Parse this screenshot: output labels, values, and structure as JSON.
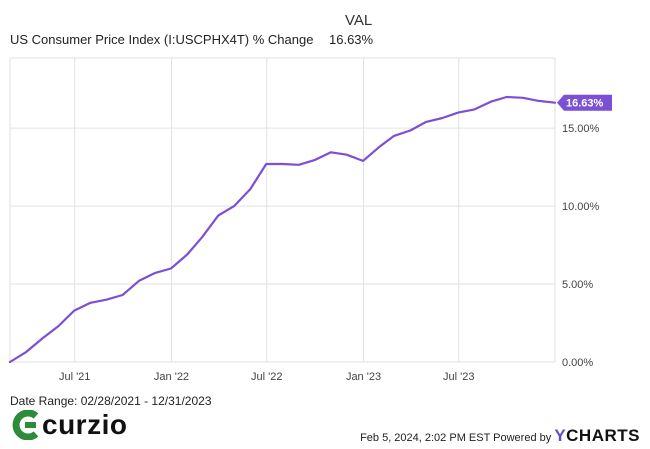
{
  "header": {
    "column_label": "VAL",
    "series_name": "US Consumer Price Index (I:USCPHX4T) % Change",
    "series_value": "16.63%"
  },
  "chart_data": {
    "type": "line",
    "series": [
      {
        "name": "US Consumer Price Index (I:USCPHX4T) % Change",
        "color": "#7b4fd6",
        "x": [
          "2021-02-28",
          "2021-03-31",
          "2021-04-30",
          "2021-05-31",
          "2021-06-30",
          "2021-07-31",
          "2021-08-31",
          "2021-09-30",
          "2021-10-31",
          "2021-11-30",
          "2021-12-31",
          "2022-01-31",
          "2022-02-28",
          "2022-03-31",
          "2022-04-30",
          "2022-05-31",
          "2022-06-30",
          "2022-07-31",
          "2022-08-31",
          "2022-09-30",
          "2022-10-31",
          "2022-11-30",
          "2022-12-31",
          "2023-01-31",
          "2023-02-28",
          "2023-03-31",
          "2023-04-30",
          "2023-05-31",
          "2023-06-30",
          "2023-07-31",
          "2023-08-31",
          "2023-09-30",
          "2023-10-31",
          "2023-11-30",
          "2023-12-31"
        ],
        "y": [
          0.0,
          0.65,
          1.5,
          2.3,
          3.3,
          3.8,
          4.0,
          4.3,
          5.2,
          5.7,
          6.0,
          6.9,
          8.0,
          9.4,
          10.0,
          11.1,
          12.7,
          12.7,
          12.65,
          12.95,
          13.45,
          13.3,
          12.9,
          13.8,
          14.5,
          14.85,
          15.4,
          15.65,
          16.0,
          16.2,
          16.7,
          17.0,
          16.95,
          16.75,
          16.63
        ]
      }
    ],
    "x_ticks": [
      "Jul '21",
      "Jan '22",
      "Jul '22",
      "Jan '23",
      "Jul '23"
    ],
    "x_tick_dates": [
      "2021-07-01",
      "2022-01-01",
      "2022-07-01",
      "2023-01-01",
      "2023-07-01"
    ],
    "y_ticks": [
      0,
      5,
      10,
      15
    ],
    "y_tick_labels": [
      "0.00%",
      "5.00%",
      "10.00%",
      "15.00%"
    ],
    "ylim": [
      0,
      19.5
    ],
    "xlim": [
      "2021-02-28",
      "2023-12-31"
    ],
    "y_axis_side": "right",
    "grid": true,
    "last_value_label": "16.63%"
  },
  "footer": {
    "date_range": "Date Range: 02/28/2021 - 12/31/2023",
    "brand": "curzio",
    "timestamp": "Feb 5, 2024, 2:02 PM EST Powered by",
    "provider_y": "Y",
    "provider_rest": "CHARTS"
  },
  "colors": {
    "line": "#7b4fd6",
    "grid": "#e2e2e2",
    "logo_green": "#2e8b3a"
  }
}
